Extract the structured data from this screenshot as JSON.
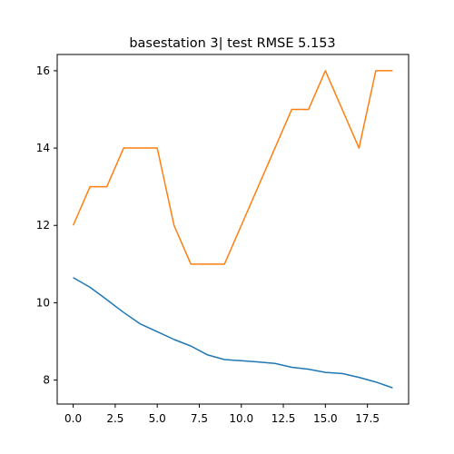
{
  "chart_data": {
    "type": "line",
    "title": "basestation 3| test RMSE 5.153",
    "xlabel": "",
    "ylabel": "",
    "xlim": [
      -0.95,
      19.95
    ],
    "ylim": [
      7.38,
      16.42
    ],
    "grid": false,
    "xticks": [
      0,
      2.5,
      5,
      7.5,
      10,
      12.5,
      15,
      17.5
    ],
    "xtick_labels": [
      "0.0",
      "2.5",
      "5.0",
      "7.5",
      "10.0",
      "12.5",
      "15.0",
      "17.5"
    ],
    "yticks": [
      8,
      10,
      12,
      14,
      16
    ],
    "ytick_labels": [
      "8",
      "10",
      "12",
      "14",
      "16"
    ],
    "x": [
      0,
      1,
      2,
      3,
      4,
      5,
      6,
      7,
      8,
      9,
      10,
      11,
      12,
      13,
      14,
      15,
      16,
      17,
      18,
      19
    ],
    "series": [
      {
        "color": "#1f77b4",
        "values": [
          10.65,
          10.4,
          10.08,
          9.75,
          9.45,
          9.25,
          9.05,
          8.88,
          8.65,
          8.53,
          8.5,
          8.47,
          8.43,
          8.33,
          8.28,
          8.2,
          8.17,
          8.07,
          7.95,
          7.8
        ]
      },
      {
        "color": "#ff7f0e",
        "values": [
          12,
          13,
          13,
          14,
          14,
          14,
          12,
          11,
          11,
          11,
          12,
          13,
          14,
          15,
          15,
          16,
          15,
          14,
          16,
          16
        ]
      }
    ]
  }
}
